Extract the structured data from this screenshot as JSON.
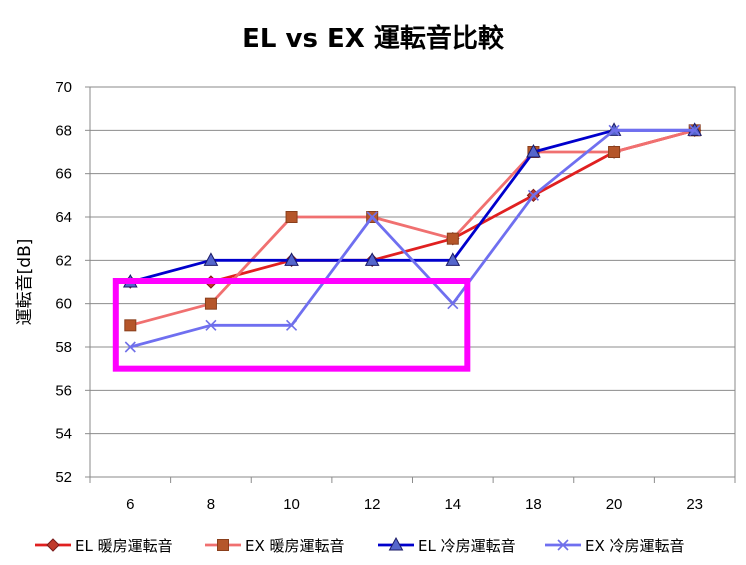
{
  "chart_data": {
    "type": "line",
    "title": "EL vs EX 運転音比較",
    "xlabel": "",
    "ylabel": "運転音[dB]",
    "categories": [
      "6",
      "8",
      "10",
      "12",
      "14",
      "18",
      "20",
      "23"
    ],
    "ylim": [
      52,
      70
    ],
    "yticks": [
      "52",
      "54",
      "56",
      "58",
      "60",
      "62",
      "64",
      "66",
      "68",
      "70"
    ],
    "grid": true,
    "legend_position": "bottom",
    "series": [
      {
        "name": "EL 暖房運転音",
        "values": [
          61,
          61,
          62,
          62,
          63,
          65,
          67,
          68
        ],
        "color": "#e02020",
        "marker": "diamond",
        "marker_color": "#c0392b"
      },
      {
        "name": "EX 暖房運転音",
        "values": [
          59,
          60,
          64,
          64,
          63,
          67,
          67,
          68
        ],
        "color": "#f07070",
        "marker": "square",
        "marker_color": "#b5562a"
      },
      {
        "name": "EL 冷房運転音",
        "values": [
          61,
          62,
          62,
          62,
          62,
          67,
          68,
          68
        ],
        "color": "#0000cc",
        "marker": "triangle",
        "marker_color": "#5566cc"
      },
      {
        "name": "EX 冷房運転音",
        "values": [
          58,
          59,
          59,
          64,
          60,
          65,
          68,
          68
        ],
        "color": "#6f6ff0",
        "marker": "x",
        "marker_color": "#7070e8"
      }
    ],
    "annotation": {
      "shape": "rectangle",
      "color": "#ff00ff",
      "x_range": [
        "6",
        "14"
      ],
      "y_range": [
        57,
        61
      ]
    }
  }
}
